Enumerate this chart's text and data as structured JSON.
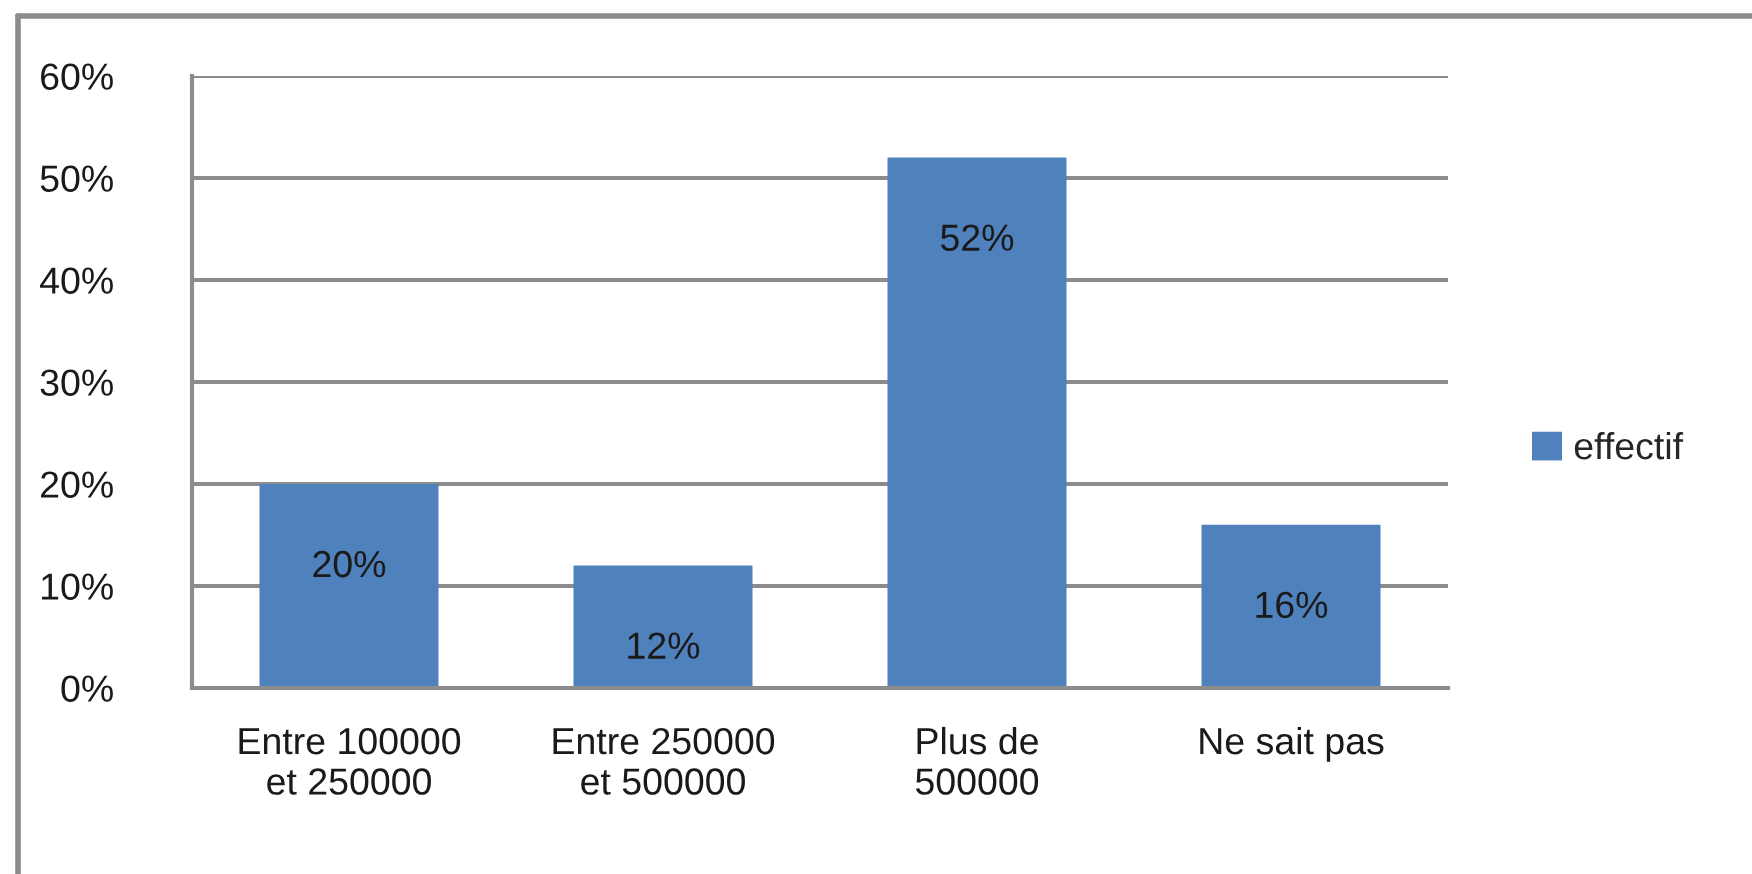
{
  "chart_data": {
    "type": "bar",
    "categories": [
      "Entre 100000 et 250000",
      "Entre 250000 et 500000",
      "Plus de 500000",
      "Ne sait pas"
    ],
    "series": [
      {
        "name": "effectif",
        "color": "#4f81bd",
        "values": [
          20,
          12,
          52,
          16
        ],
        "value_labels": [
          "20%",
          "12%",
          "52%",
          "16%"
        ]
      }
    ],
    "ylim": [
      0,
      60
    ],
    "yticks": [
      {
        "value": 0,
        "label": "0%"
      },
      {
        "value": 10,
        "label": "10%"
      },
      {
        "value": 20,
        "label": "20%"
      },
      {
        "value": 30,
        "label": "30%"
      },
      {
        "value": 40,
        "label": "40%"
      },
      {
        "value": 50,
        "label": "50%"
      },
      {
        "value": 60,
        "label": "60%"
      }
    ],
    "grid": "y",
    "legend": "right"
  }
}
